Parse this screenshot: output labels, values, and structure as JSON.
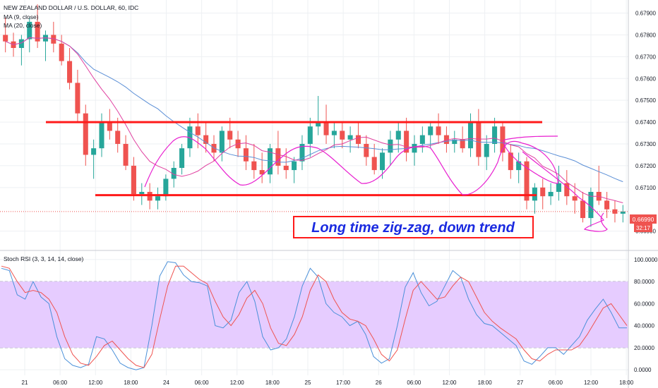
{
  "header": {
    "symbol_title": "NEW ZEALAND DOLLAR / U.S. DOLLAR, 60, IDC",
    "ma9_label": "MA (9, close)",
    "ma20_label": "MA (20, close)"
  },
  "oscillator": {
    "title": "Stoch RSI (3, 3, 14, 14, close)",
    "band_upper": 80,
    "band_lower": 20
  },
  "annotation": {
    "text": "Long time zig-zag, down trend"
  },
  "price_tag": {
    "last_price": "0.66990",
    "countdown": "32:17"
  },
  "colors": {
    "up": "#26a69a",
    "down": "#ef5350",
    "ma9": "#e040a0",
    "ma20": "#5b8fd6",
    "channel": "#ff1a1a",
    "drawing": "#e81fd0",
    "stoch_k": "#4a90d9",
    "stoch_d": "#ef5350",
    "band_fill": "#e6ccff",
    "annotation_border": "#ff1a1a",
    "annotation_text": "#1a2ae0",
    "price_tag": "#ef5350"
  },
  "chart_data": [
    {
      "type": "candlestick",
      "title": "NEW ZEALAND DOLLAR / U.S. DOLLAR, 60, IDC",
      "series_names": [
        "MA (9, close)",
        "MA (20, close)"
      ],
      "y_ticks": [
        "0.67900",
        "0.67800",
        "0.67700",
        "0.67600",
        "0.67500",
        "0.67400",
        "0.67300",
        "0.67200",
        "0.67100",
        "0.66900"
      ],
      "ylim": [
        0.6686,
        0.6796
      ],
      "x_ticks": [
        "21",
        "06:00",
        "12:00",
        "18:00",
        "24",
        "06:00",
        "12:00",
        "18:00",
        "25",
        "17:00",
        "26",
        "06:00",
        "12:00",
        "18:00",
        "27",
        "06:00",
        "12:00",
        "18:00"
      ],
      "candles": [
        [
          0.678,
          0.6788,
          0.6772,
          0.6777
        ],
        [
          0.6777,
          0.6781,
          0.677,
          0.6774
        ],
        [
          0.6774,
          0.678,
          0.6766,
          0.6778
        ],
        [
          0.6778,
          0.6788,
          0.6772,
          0.6786
        ],
        [
          0.6786,
          0.6794,
          0.6774,
          0.6777
        ],
        [
          0.6777,
          0.6782,
          0.6768,
          0.678
        ],
        [
          0.678,
          0.6786,
          0.6772,
          0.6776
        ],
        [
          0.6776,
          0.678,
          0.6766,
          0.6768
        ],
        [
          0.6768,
          0.6774,
          0.6755,
          0.6758
        ],
        [
          0.6758,
          0.6764,
          0.674,
          0.6744
        ],
        [
          0.6744,
          0.6748,
          0.672,
          0.6725
        ],
        [
          0.6725,
          0.6732,
          0.6714,
          0.6728
        ],
        [
          0.6728,
          0.6744,
          0.6724,
          0.674
        ],
        [
          0.674,
          0.6746,
          0.6732,
          0.6736
        ],
        [
          0.6736,
          0.6742,
          0.6726,
          0.673
        ],
        [
          0.673,
          0.6734,
          0.6718,
          0.672
        ],
        [
          0.672,
          0.6724,
          0.6704,
          0.6707
        ],
        [
          0.6707,
          0.6712,
          0.6702,
          0.6708
        ],
        [
          0.6708,
          0.6712,
          0.67,
          0.6704
        ],
        [
          0.6704,
          0.671,
          0.67,
          0.6706
        ],
        [
          0.6706,
          0.6716,
          0.6704,
          0.6714
        ],
        [
          0.6714,
          0.6722,
          0.671,
          0.6719
        ],
        [
          0.6719,
          0.673,
          0.6716,
          0.6728
        ],
        [
          0.6728,
          0.6742,
          0.6724,
          0.6738
        ],
        [
          0.6738,
          0.6744,
          0.6728,
          0.6734
        ],
        [
          0.6734,
          0.674,
          0.6726,
          0.673
        ],
        [
          0.673,
          0.6734,
          0.6722,
          0.6726
        ],
        [
          0.6726,
          0.6738,
          0.6722,
          0.6736
        ],
        [
          0.6736,
          0.6742,
          0.6728,
          0.6732
        ],
        [
          0.6732,
          0.6736,
          0.6724,
          0.6728
        ],
        [
          0.6728,
          0.6734,
          0.6718,
          0.6722
        ],
        [
          0.6722,
          0.673,
          0.6714,
          0.6718
        ],
        [
          0.6718,
          0.6726,
          0.6712,
          0.6716
        ],
        [
          0.6716,
          0.673,
          0.6712,
          0.6728
        ],
        [
          0.6728,
          0.6736,
          0.6716,
          0.672
        ],
        [
          0.672,
          0.6728,
          0.6714,
          0.6718
        ],
        [
          0.6718,
          0.6724,
          0.6712,
          0.6722
        ],
        [
          0.6722,
          0.6734,
          0.6718,
          0.673
        ],
        [
          0.673,
          0.6742,
          0.6724,
          0.6738
        ],
        [
          0.6738,
          0.6752,
          0.6734,
          0.674
        ],
        [
          0.674,
          0.6748,
          0.673,
          0.6734
        ],
        [
          0.6734,
          0.674,
          0.6728,
          0.6736
        ],
        [
          0.6736,
          0.674,
          0.6728,
          0.6732
        ],
        [
          0.6732,
          0.6738,
          0.6726,
          0.6734
        ],
        [
          0.6734,
          0.674,
          0.6728,
          0.673
        ],
        [
          0.673,
          0.6734,
          0.672,
          0.6724
        ],
        [
          0.6724,
          0.673,
          0.6716,
          0.6718
        ],
        [
          0.6718,
          0.6728,
          0.6714,
          0.6726
        ],
        [
          0.6726,
          0.6736,
          0.672,
          0.6732
        ],
        [
          0.6732,
          0.674,
          0.6726,
          0.6736
        ],
        [
          0.6736,
          0.6742,
          0.6722,
          0.6726
        ],
        [
          0.6726,
          0.6734,
          0.672,
          0.673
        ],
        [
          0.673,
          0.6738,
          0.6726,
          0.6734
        ],
        [
          0.6734,
          0.674,
          0.6728,
          0.6738
        ],
        [
          0.6738,
          0.6744,
          0.673,
          0.6734
        ],
        [
          0.6734,
          0.6738,
          0.6726,
          0.673
        ],
        [
          0.673,
          0.6736,
          0.6726,
          0.6732
        ],
        [
          0.6732,
          0.6738,
          0.6726,
          0.6728
        ],
        [
          0.6728,
          0.6744,
          0.6724,
          0.674
        ],
        [
          0.674,
          0.6746,
          0.672,
          0.6724
        ],
        [
          0.6724,
          0.6734,
          0.6718,
          0.673
        ],
        [
          0.673,
          0.6742,
          0.6726,
          0.6738
        ],
        [
          0.6738,
          0.674,
          0.6722,
          0.6726
        ],
        [
          0.6726,
          0.673,
          0.6714,
          0.6718
        ],
        [
          0.6718,
          0.6726,
          0.6712,
          0.6722
        ],
        [
          0.6722,
          0.6724,
          0.67,
          0.6704
        ],
        [
          0.6704,
          0.6712,
          0.6698,
          0.671
        ],
        [
          0.671,
          0.6714,
          0.67,
          0.6706
        ],
        [
          0.6706,
          0.6712,
          0.6702,
          0.6708
        ],
        [
          0.6708,
          0.672,
          0.6704,
          0.6712
        ],
        [
          0.6712,
          0.6718,
          0.6702,
          0.6706
        ],
        [
          0.6706,
          0.6712,
          0.6698,
          0.6704
        ],
        [
          0.6704,
          0.6708,
          0.6694,
          0.6696
        ],
        [
          0.6696,
          0.671,
          0.6692,
          0.6708
        ],
        [
          0.6708,
          0.672,
          0.6702,
          0.6704
        ],
        [
          0.6704,
          0.6708,
          0.6696,
          0.67
        ],
        [
          0.67,
          0.6704,
          0.6694,
          0.6698
        ],
        [
          0.6698,
          0.6702,
          0.6694,
          0.6699
        ]
      ],
      "channel_upper_y": 0.674,
      "channel_lower_y": 0.67065
    },
    {
      "type": "line",
      "title": "Stoch RSI (3, 3, 14, 14, close)",
      "y_ticks": [
        "100.0000",
        "80.0000",
        "60.0000",
        "40.0000",
        "20.0000",
        "0.0000"
      ],
      "ylim": [
        -5,
        105
      ],
      "band": [
        20,
        80
      ],
      "series": [
        {
          "name": "K",
          "values": [
            92,
            90,
            68,
            64,
            80,
            66,
            60,
            30,
            10,
            4,
            2,
            5,
            30,
            28,
            18,
            6,
            2,
            0,
            2,
            40,
            85,
            98,
            97,
            86,
            80,
            79,
            76,
            40,
            38,
            45,
            70,
            80,
            62,
            30,
            18,
            20,
            28,
            48,
            76,
            92,
            84,
            60,
            52,
            48,
            40,
            44,
            32,
            12,
            6,
            10,
            40,
            75,
            88,
            70,
            58,
            62,
            76,
            90,
            84,
            64,
            50,
            42,
            40,
            34,
            28,
            22,
            8,
            5,
            12,
            20,
            20,
            14,
            22,
            30,
            45,
            55,
            64,
            52,
            38,
            38
          ]
        },
        {
          "name": "D",
          "values": [
            94,
            92,
            80,
            70,
            72,
            70,
            64,
            52,
            30,
            14,
            6,
            4,
            12,
            22,
            26,
            18,
            10,
            4,
            2,
            14,
            46,
            76,
            94,
            94,
            88,
            82,
            78,
            62,
            48,
            40,
            50,
            65,
            72,
            60,
            38,
            24,
            22,
            32,
            48,
            72,
            86,
            80,
            64,
            52,
            46,
            44,
            40,
            28,
            14,
            8,
            18,
            46,
            72,
            80,
            72,
            64,
            66,
            76,
            84,
            80,
            66,
            52,
            44,
            38,
            33,
            28,
            18,
            10,
            8,
            14,
            18,
            18,
            18,
            22,
            32,
            44,
            56,
            60,
            50,
            40
          ]
        }
      ]
    }
  ]
}
